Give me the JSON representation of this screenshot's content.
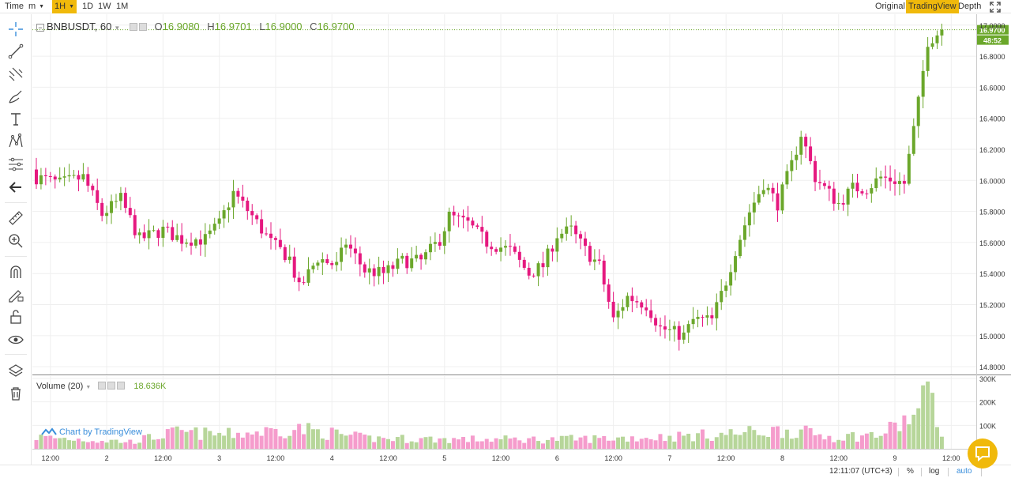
{
  "toolbar": {
    "time_label": "Time",
    "minute_label": "m",
    "interval_active": "1H",
    "intervals": [
      "1D",
      "1W",
      "1M"
    ],
    "views": [
      "Original",
      "TradingView",
      "Depth"
    ],
    "active_view": "TradingView"
  },
  "legend": {
    "symbol": "BNBUSDT, 60",
    "open_label": "O",
    "open": "16.9080",
    "high_label": "H",
    "high": "16.9701",
    "low_label": "L",
    "low": "16.9000",
    "close_label": "C",
    "close": "16.9700"
  },
  "volume_legend": {
    "label": "Volume (20)",
    "value": "18.636K"
  },
  "price_tags": {
    "last_price": "16.9700",
    "countdown": "48:52"
  },
  "watermark": "Chart by TradingView",
  "bottom_bar": {
    "time": "12:11:07 (UTC+3)",
    "percent": "%",
    "log": "log",
    "auto": "auto"
  },
  "colors": {
    "up": "#6ba72b",
    "down": "#e5187f",
    "up_volume": "#b7d69a",
    "down_volume": "#f59ccc",
    "accent": "#f0b90b"
  },
  "chart_data": {
    "type": "candlestick",
    "symbol": "BNBUSDT",
    "interval": "60",
    "price_axis": {
      "ticks": [
        14.8,
        15.0,
        15.2,
        15.4,
        15.6,
        15.8,
        16.0,
        16.2,
        16.4,
        16.6,
        16.8,
        17.0
      ],
      "tick_labels": [
        "14.8000",
        "15.0000",
        "15.2000",
        "15.4000",
        "15.6000",
        "15.8000",
        "16.0000",
        "16.2000",
        "16.4000",
        "16.6000",
        "16.8000",
        "17.0000"
      ],
      "range": [
        14.75,
        17.07
      ]
    },
    "volume_axis": {
      "ticks": [
        100000,
        200000,
        300000
      ],
      "tick_labels": [
        "100K",
        "200K",
        "300K"
      ],
      "range": [
        0,
        310000
      ]
    },
    "time_axis": {
      "labels": [
        {
          "text": "12:00",
          "idx": 3
        },
        {
          "text": "2",
          "idx": 15
        },
        {
          "text": "12:00",
          "idx": 27
        },
        {
          "text": "3",
          "idx": 39
        },
        {
          "text": "12:00",
          "idx": 51
        },
        {
          "text": "4",
          "idx": 63
        },
        {
          "text": "12:00",
          "idx": 75
        },
        {
          "text": "5",
          "idx": 87
        },
        {
          "text": "12:00",
          "idx": 99
        },
        {
          "text": "6",
          "idx": 111
        },
        {
          "text": "12:00",
          "idx": 123
        },
        {
          "text": "7",
          "idx": 135
        },
        {
          "text": "12:00",
          "idx": 147
        },
        {
          "text": "8",
          "idx": 159
        },
        {
          "text": "12:00",
          "idx": 171
        },
        {
          "text": "9",
          "idx": 183
        },
        {
          "text": "12:00",
          "idx": 195
        }
      ]
    },
    "anchors": [
      [
        0,
        16.02
      ],
      [
        5,
        15.98
      ],
      [
        10,
        16.02
      ],
      [
        14,
        15.78
      ],
      [
        18,
        15.88
      ],
      [
        22,
        15.62
      ],
      [
        27,
        15.68
      ],
      [
        31,
        15.62
      ],
      [
        36,
        15.62
      ],
      [
        39,
        15.72
      ],
      [
        42,
        15.92
      ],
      [
        46,
        15.77
      ],
      [
        50,
        15.6
      ],
      [
        54,
        15.5
      ],
      [
        56,
        15.3
      ],
      [
        60,
        15.5
      ],
      [
        64,
        15.45
      ],
      [
        66,
        15.6
      ],
      [
        70,
        15.42
      ],
      [
        74,
        15.4
      ],
      [
        78,
        15.48
      ],
      [
        82,
        15.48
      ],
      [
        86,
        15.62
      ],
      [
        88,
        15.77
      ],
      [
        92,
        15.72
      ],
      [
        96,
        15.6
      ],
      [
        101,
        15.55
      ],
      [
        105,
        15.4
      ],
      [
        108,
        15.45
      ],
      [
        111,
        15.65
      ],
      [
        114,
        15.68
      ],
      [
        117,
        15.55
      ],
      [
        120,
        15.45
      ],
      [
        123,
        15.1
      ],
      [
        126,
        15.25
      ],
      [
        130,
        15.2
      ],
      [
        133,
        15.05
      ],
      [
        138,
        15.0
      ],
      [
        140,
        15.1
      ],
      [
        144,
        15.1
      ],
      [
        147,
        15.35
      ],
      [
        149,
        15.55
      ],
      [
        152,
        15.8
      ],
      [
        155,
        15.98
      ],
      [
        158,
        15.85
      ],
      [
        161,
        16.1
      ],
      [
        163,
        16.3
      ],
      [
        166,
        16.02
      ],
      [
        168,
        15.95
      ],
      [
        171,
        15.85
      ],
      [
        174,
        15.95
      ],
      [
        177,
        15.95
      ],
      [
        180,
        16.02
      ],
      [
        183,
        16.0
      ],
      [
        185,
        15.98
      ],
      [
        188,
        16.5
      ],
      [
        190,
        16.9
      ],
      [
        191,
        16.92
      ],
      [
        193,
        16.97
      ]
    ],
    "volume_profile": [
      [
        0,
        50000
      ],
      [
        10,
        40000
      ],
      [
        20,
        30000
      ],
      [
        30,
        70000
      ],
      [
        40,
        60000
      ],
      [
        56,
        85000
      ],
      [
        70,
        45000
      ],
      [
        90,
        40000
      ],
      [
        110,
        40000
      ],
      [
        123,
        45000
      ],
      [
        133,
        50000
      ],
      [
        145,
        60000
      ],
      [
        160,
        80000
      ],
      [
        170,
        50000
      ],
      [
        180,
        60000
      ],
      [
        188,
        150000
      ],
      [
        191,
        290000
      ],
      [
        193,
        40000
      ]
    ]
  }
}
